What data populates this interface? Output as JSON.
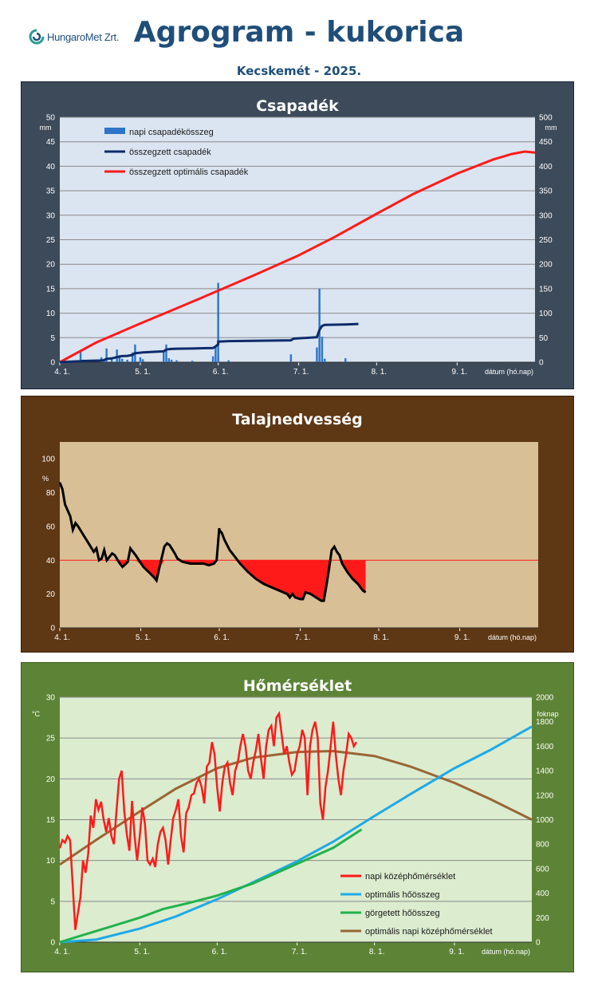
{
  "header": {
    "logo_text": "HungaroMet Zrt.",
    "title": "Agrogram - kukorica",
    "subtitle": "Kecskemét - 2025."
  },
  "colors": {
    "title_blue": "#1f4e79",
    "panel1_bg": "#3d4a5a",
    "panel2_bg": "#5e3714",
    "panel3_bg": "#5d8436",
    "plot1_bg": "#dbe5f1",
    "plot2_bg": "#d9bf96",
    "plot3_bg": "#dbeccf",
    "red": "#ff1a1a",
    "navy": "#0d2a6a",
    "bar_blue": "#2e75c8",
    "light_blue": "#1fa9e6",
    "green": "#22b24c",
    "brown": "#9a6535"
  },
  "x_ticks": [
    "4. 1.",
    "5. 1.",
    "6. 1.",
    "7. 1.",
    "8. 1.",
    "9. 1."
  ],
  "x_label": "dátum (hó.nap)",
  "chart_data": [
    {
      "type": "bar+line",
      "title": "Csapadék",
      "y_unit": "mm",
      "y2_unit": "mm",
      "ylim": [
        0,
        50
      ],
      "y2lim": [
        0,
        500
      ],
      "y_ticks": [
        0,
        5,
        10,
        15,
        20,
        25,
        30,
        35,
        40,
        45,
        50
      ],
      "y2_ticks": [
        0,
        50,
        100,
        150,
        200,
        250,
        300,
        350,
        400,
        450,
        500
      ],
      "xlim": [
        "04-01",
        "10-01"
      ],
      "legend": [
        "napi csapadékösszeg",
        "összegzett csapadék",
        "összegzett optimális csapadék"
      ],
      "legend_position": "top-left",
      "grid": true,
      "bars": [
        {
          "x": "04-09",
          "v": 2.2
        },
        {
          "x": "04-10",
          "v": 0.5
        },
        {
          "x": "04-17",
          "v": 1.0
        },
        {
          "x": "04-18",
          "v": 0.6
        },
        {
          "x": "04-19",
          "v": 2.8
        },
        {
          "x": "04-21",
          "v": 0.8
        },
        {
          "x": "04-23",
          "v": 2.6
        },
        {
          "x": "04-24",
          "v": 1.3
        },
        {
          "x": "04-25",
          "v": 0.7
        },
        {
          "x": "04-27",
          "v": 0.5
        },
        {
          "x": "04-29",
          "v": 2.0
        },
        {
          "x": "04-30",
          "v": 3.6
        },
        {
          "x": "05-01",
          "v": 1.0
        },
        {
          "x": "05-02",
          "v": 0.6
        },
        {
          "x": "05-10",
          "v": 2.2
        },
        {
          "x": "05-11",
          "v": 3.6
        },
        {
          "x": "05-12",
          "v": 0.8
        },
        {
          "x": "05-13",
          "v": 0.5
        },
        {
          "x": "05-15",
          "v": 0.4
        },
        {
          "x": "05-21",
          "v": 0.3
        },
        {
          "x": "05-29",
          "v": 1.2
        },
        {
          "x": "05-30",
          "v": 3.0
        },
        {
          "x": "05-31",
          "v": 16.2
        },
        {
          "x": "06-01",
          "v": 1.1
        },
        {
          "x": "06-05",
          "v": 0.4
        },
        {
          "x": "06-29",
          "v": 1.6
        },
        {
          "x": "07-08",
          "v": 3.0
        },
        {
          "x": "07-09",
          "v": 15.0
        },
        {
          "x": "07-10",
          "v": 5.2
        },
        {
          "x": "07-11",
          "v": 0.7
        },
        {
          "x": "07-19",
          "v": 0.8
        }
      ],
      "series": [
        {
          "name": "összegzett csapadék",
          "axis": "y2",
          "points": [
            [
              "04-01",
              0
            ],
            [
              "04-09",
              2
            ],
            [
              "04-10",
              2.5
            ],
            [
              "04-17",
              3.5
            ],
            [
              "04-18",
              4.1
            ],
            [
              "04-19",
              6.9
            ],
            [
              "04-21",
              7.7
            ],
            [
              "04-23",
              10.3
            ],
            [
              "04-24",
              11.6
            ],
            [
              "04-25",
              12.3
            ],
            [
              "04-27",
              12.8
            ],
            [
              "04-29",
              14.8
            ],
            [
              "04-30",
              18.4
            ],
            [
              "05-01",
              19.4
            ],
            [
              "05-02",
              20
            ],
            [
              "05-10",
              22.2
            ],
            [
              "05-11",
              25.8
            ],
            [
              "05-12",
              26.6
            ],
            [
              "05-13",
              27.1
            ],
            [
              "05-15",
              27.5
            ],
            [
              "05-21",
              27.8
            ],
            [
              "05-29",
              29
            ],
            [
              "05-30",
              32
            ],
            [
              "05-31",
              37
            ],
            [
              "06-01",
              42
            ],
            [
              "06-05",
              43
            ],
            [
              "06-29",
              44.6
            ],
            [
              "06-30",
              48
            ],
            [
              "07-08",
              51
            ],
            [
              "07-09",
              66
            ],
            [
              "07-10",
              74
            ],
            [
              "07-11",
              76
            ],
            [
              "07-19",
              77
            ],
            [
              "07-24",
              78
            ]
          ]
        },
        {
          "name": "összegzett optimális csapadék",
          "axis": "y2",
          "points": [
            [
              "04-01",
              0
            ],
            [
              "04-15",
              40
            ],
            [
              "05-01",
              79
            ],
            [
              "05-15",
              110
            ],
            [
              "06-01",
              146
            ],
            [
              "06-15",
              178
            ],
            [
              "07-01",
              218
            ],
            [
              "07-15",
              256
            ],
            [
              "08-01",
              303
            ],
            [
              "08-15",
              343
            ],
            [
              "09-01",
              385
            ],
            [
              "09-15",
              414
            ],
            [
              "09-22",
              425
            ],
            [
              "09-27",
              430
            ],
            [
              "10-01",
              428
            ]
          ]
        }
      ]
    },
    {
      "type": "area",
      "title": "Talajnedvesség",
      "y_unit": "%",
      "ylim": [
        0,
        110
      ],
      "y_ticks": [
        0,
        20,
        40,
        60,
        80,
        100
      ],
      "xlim": [
        "04-01",
        "10-01"
      ],
      "threshold": 40,
      "grid": false,
      "series": [
        {
          "name": "talajnedvesség",
          "points": [
            [
              "04-01",
              86
            ],
            [
              "04-02",
              82
            ],
            [
              "04-03",
              73
            ],
            [
              "04-05",
              66
            ],
            [
              "04-06",
              58
            ],
            [
              "04-07",
              62
            ],
            [
              "04-08",
              60
            ],
            [
              "04-10",
              55
            ],
            [
              "04-12",
              50
            ],
            [
              "04-14",
              45
            ],
            [
              "04-15",
              47
            ],
            [
              "04-16",
              40
            ],
            [
              "04-17",
              41
            ],
            [
              "04-18",
              46
            ],
            [
              "04-19",
              40
            ],
            [
              "04-20",
              42
            ],
            [
              "04-21",
              44
            ],
            [
              "04-22",
              43
            ],
            [
              "04-24",
              38
            ],
            [
              "04-25",
              36
            ],
            [
              "04-27",
              39
            ],
            [
              "04-28",
              47
            ],
            [
              "04-29",
              45
            ],
            [
              "04-30",
              43
            ],
            [
              "05-02",
              36
            ],
            [
              "05-04",
              33
            ],
            [
              "05-06",
              30
            ],
            [
              "05-07",
              28
            ],
            [
              "05-08",
              35
            ],
            [
              "05-10",
              48
            ],
            [
              "05-11",
              50
            ],
            [
              "05-12",
              49
            ],
            [
              "05-14",
              44
            ],
            [
              "05-15",
              41
            ],
            [
              "05-16",
              40
            ],
            [
              "05-17",
              39
            ],
            [
              "05-20",
              38
            ],
            [
              "05-25",
              38
            ],
            [
              "05-27",
              37
            ],
            [
              "05-29",
              38
            ],
            [
              "05-30",
              40
            ],
            [
              "05-31",
              59
            ],
            [
              "06-01",
              58
            ],
            [
              "06-02",
              56
            ],
            [
              "06-03",
              52
            ],
            [
              "06-05",
              46
            ],
            [
              "06-07",
              42
            ],
            [
              "06-09",
              38
            ],
            [
              "06-12",
              33
            ],
            [
              "06-15",
              29
            ],
            [
              "06-18",
              26
            ],
            [
              "06-21",
              24
            ],
            [
              "06-24",
              22
            ],
            [
              "06-27",
              20
            ],
            [
              "06-28",
              18
            ],
            [
              "06-29",
              20
            ],
            [
              "06-30",
              18
            ],
            [
              "07-01",
              17
            ],
            [
              "07-02",
              17
            ],
            [
              "07-03",
              21
            ],
            [
              "07-05",
              20
            ],
            [
              "07-06",
              19
            ],
            [
              "07-08",
              17
            ],
            [
              "07-09",
              16
            ],
            [
              "07-10",
              16
            ],
            [
              "07-11",
              25
            ],
            [
              "07-12",
              35
            ],
            [
              "07-13",
              46
            ],
            [
              "07-14",
              48
            ],
            [
              "07-15",
              45
            ],
            [
              "07-16",
              43
            ],
            [
              "07-17",
              38
            ],
            [
              "07-19",
              33
            ],
            [
              "07-21",
              29
            ],
            [
              "07-23",
              26
            ],
            [
              "07-24",
              24
            ],
            [
              "07-25",
              22
            ],
            [
              "07-26",
              21
            ]
          ]
        }
      ]
    },
    {
      "type": "line",
      "title": "Hőmérséklet",
      "y_unit": "°C",
      "y2_unit": "foknap",
      "ylim": [
        0,
        30
      ],
      "y2lim": [
        0,
        2000
      ],
      "y_ticks": [
        0,
        5,
        10,
        15,
        20,
        25,
        30
      ],
      "y2_ticks": [
        0,
        200,
        400,
        600,
        800,
        1000,
        1200,
        1400,
        1600,
        1800,
        2000
      ],
      "xlim": [
        "04-01",
        "10-01"
      ],
      "legend": [
        "napi középhőmérséklet",
        "optimális hőösszeg",
        "görgetett hőösszeg",
        "optimális napi középhőmérséklet"
      ],
      "legend_position": "bottom-right",
      "grid": true,
      "series": [
        {
          "name": "napi középhőmérséklet",
          "axis": "y",
          "values": [
            11.5,
            12.5,
            12.2,
            13,
            12.5,
            7,
            1.5,
            3.5,
            5.5,
            10,
            8.5,
            10.8,
            15.5,
            14,
            17.5,
            16.2,
            17.2,
            15,
            13.5,
            15.2,
            13,
            12,
            16.2,
            20,
            21,
            16,
            13.2,
            11.2,
            17.3,
            13,
            10,
            13,
            16.5,
            14.5,
            10,
            9.5,
            10.2,
            9.2,
            12,
            13.5,
            14,
            12.5,
            9.5,
            12.5,
            15.2,
            16.2,
            17.5,
            13,
            11,
            15.8,
            16.5,
            18,
            18.2,
            19.5,
            20,
            19,
            17,
            21.5,
            22,
            24.5,
            23,
            19,
            16,
            19.5,
            21.5,
            22,
            19.5,
            18,
            21,
            22,
            24,
            25.5,
            24,
            21,
            20,
            22,
            23.5,
            25.5,
            22.5,
            20,
            24,
            26,
            26.5,
            24,
            27.5,
            28,
            25.5,
            23,
            24,
            22,
            20.5,
            21,
            23,
            24,
            26,
            25,
            18,
            24,
            26,
            27,
            25,
            17,
            15,
            19,
            21,
            24,
            27,
            23,
            20,
            18,
            21,
            23,
            25.5,
            25,
            24,
            24.5
          ]
        },
        {
          "name": "optimális hőösszeg",
          "axis": "y2",
          "points": [
            [
              "04-01",
              0
            ],
            [
              "04-15",
              20
            ],
            [
              "05-01",
              110
            ],
            [
              "05-15",
              210
            ],
            [
              "06-01",
              350
            ],
            [
              "06-15",
              490
            ],
            [
              "07-01",
              660
            ],
            [
              "07-15",
              820
            ],
            [
              "08-01",
              1030
            ],
            [
              "08-15",
              1210
            ],
            [
              "09-01",
              1420
            ],
            [
              "09-15",
              1570
            ],
            [
              "10-01",
              1760
            ]
          ]
        },
        {
          "name": "görgetett hőösszeg",
          "axis": "y2",
          "points": [
            [
              "04-01",
              0
            ],
            [
              "04-15",
              90
            ],
            [
              "05-01",
              200
            ],
            [
              "05-10",
              270
            ],
            [
              "05-20",
              320
            ],
            [
              "06-01",
              380
            ],
            [
              "06-15",
              480
            ],
            [
              "07-01",
              640
            ],
            [
              "07-15",
              770
            ],
            [
              "07-26",
              920
            ]
          ]
        },
        {
          "name": "optimális napi középhőmérséklet",
          "axis": "y",
          "points": [
            [
              "04-01",
              9.5
            ],
            [
              "04-15",
              12.5
            ],
            [
              "05-01",
              16
            ],
            [
              "05-15",
              18.8
            ],
            [
              "06-01",
              21.3
            ],
            [
              "06-15",
              22.6
            ],
            [
              "07-01",
              23.3
            ],
            [
              "07-15",
              23.4
            ],
            [
              "08-01",
              22.8
            ],
            [
              "08-15",
              21.5
            ],
            [
              "09-01",
              19.5
            ],
            [
              "09-15",
              17.5
            ],
            [
              "10-01",
              15
            ]
          ]
        }
      ]
    }
  ]
}
